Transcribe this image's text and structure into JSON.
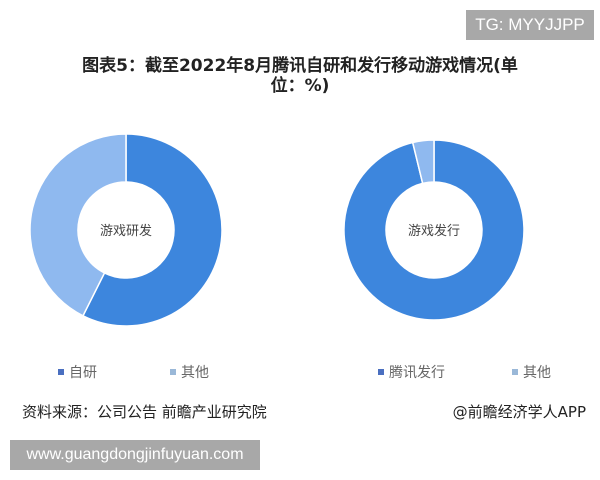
{
  "badge_top": "TG: MYYJJPP",
  "badge_bottom": "www.guangdongjinfuyuan.com",
  "chart_data": [
    {
      "type": "pie",
      "donut": true,
      "title": "图表5：截至2022年8月腾讯自研和发行移动游戏情况(单位：%)",
      "center_label": "游戏研发",
      "categories": [
        "自研",
        "其他"
      ],
      "values": [
        57.4,
        42.6
      ],
      "colors": [
        "#3d86dd",
        "#8fb9ef"
      ],
      "legend_colors": [
        "#4a6fc0",
        "#9ab8d8"
      ],
      "legend": "bottom"
    },
    {
      "type": "pie",
      "donut": true,
      "center_label": "游戏发行",
      "categories": [
        "腾讯发行",
        "其他"
      ],
      "values": [
        96.2,
        3.8
      ],
      "colors": [
        "#3d86dd",
        "#8fb9ef"
      ],
      "legend_colors": [
        "#4a6fc0",
        "#9ab8d8"
      ],
      "legend": "bottom"
    }
  ],
  "title_line1": "图表5：截至2022年8月腾讯自研和发行移动游戏情况(单",
  "title_line2": "位：%)",
  "source": "资料来源：公司公告 前瞻产业研究院",
  "credit": "@前瞻经济学人APP"
}
